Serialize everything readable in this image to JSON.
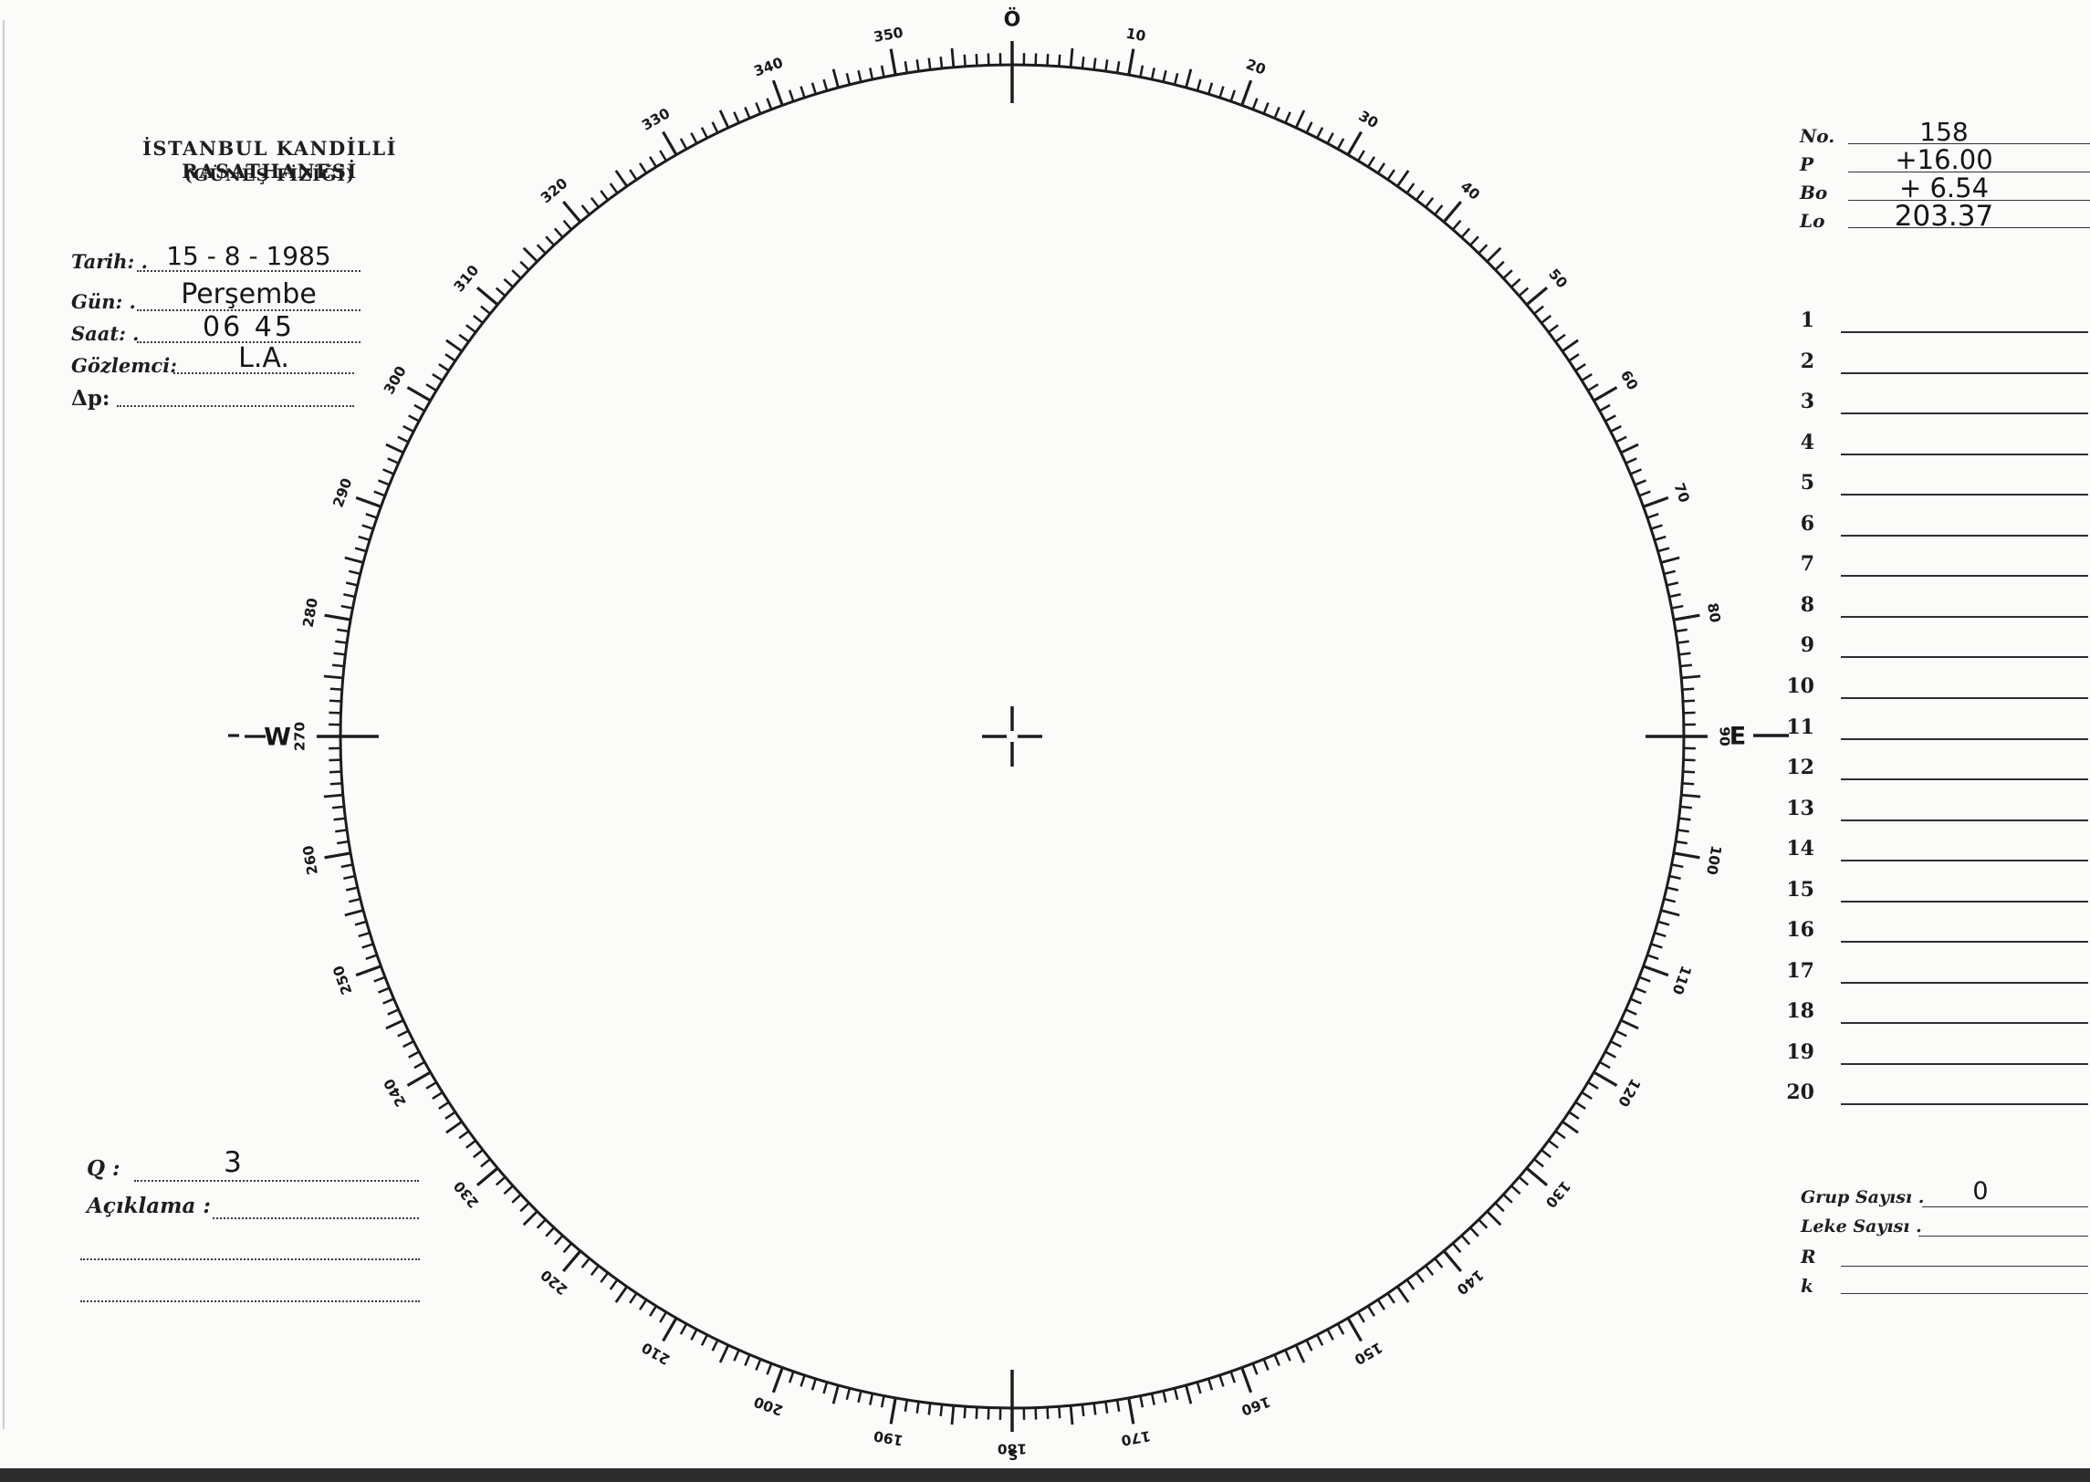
{
  "document": {
    "observatory_title": "İSTANBUL KANDİLLİ RASATHANESİ",
    "observatory_subtitle": "(GÜNEŞ FİZİĞİ)"
  },
  "observation_fields": {
    "tarih_label": "Tarih: .",
    "tarih_value": "15 - 8 - 1985",
    "gun_label": "Gün: .",
    "gun_value": "Perşembe",
    "saat_label": "Saat: .",
    "saat_value": "06 45",
    "gozlemci_label": "Gözlemci:",
    "gozlemci_value": "L.A.",
    "delta_p_label": "Δp:",
    "delta_p_value": ""
  },
  "ephemeris": {
    "no_label": "No.",
    "no_value": "158",
    "p_label": "P",
    "p_value": "+16.00",
    "bo_label": "Bo",
    "bo_value": "+ 6.54",
    "lo_label": "Lo",
    "lo_value": "203.37"
  },
  "observation_list": {
    "row_numbers": [
      "1",
      "2",
      "3",
      "4",
      "5",
      "6",
      "7",
      "8",
      "9",
      "10",
      "11",
      "12",
      "13",
      "14",
      "15",
      "16",
      "17",
      "18",
      "19",
      "20"
    ]
  },
  "summary": {
    "grup_label": "Grup Sayısı .",
    "grup_value": "0",
    "leke_label": "Leke Sayısı .",
    "leke_value": "",
    "r_label": "R",
    "r_value": "",
    "k_label": "k",
    "k_value": ""
  },
  "quality": {
    "q_label": "Q :",
    "q_value": "3",
    "aciklama_label": "Açıklama :",
    "aciklama_value": ""
  },
  "dial": {
    "degree_labels": [
      "Ö",
      "10",
      "20",
      "30",
      "40",
      "50",
      "60",
      "70",
      "80",
      "90",
      "100",
      "110",
      "120",
      "130",
      "140",
      "150",
      "160",
      "170",
      "180",
      "190",
      "200",
      "210",
      "220",
      "230",
      "240",
      "250",
      "260",
      "270",
      "280",
      "290",
      "300",
      "310",
      "320",
      "330",
      "340",
      "350"
    ],
    "west_label": "W",
    "east_label": "E",
    "south_label": "S"
  }
}
